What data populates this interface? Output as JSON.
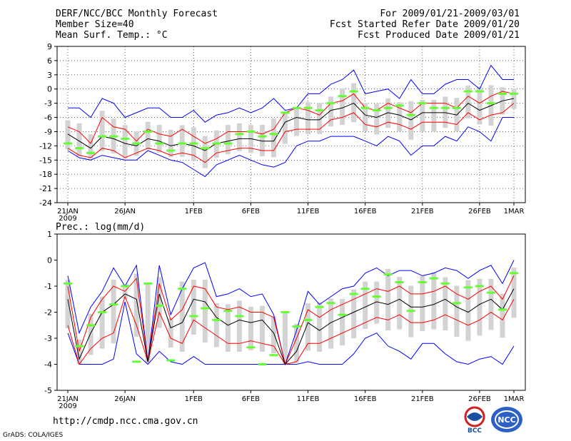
{
  "header": {
    "left": [
      "DERF/NCC/BCC Monthly Forecast",
      "Member Size=40",
      "Mean Surf. Temp.: °C"
    ],
    "right": [
      "For 2009/01/21-2009/03/01",
      "Fcst Started Refer Date 2009/01/20",
      "Fcst Produced Date 2009/01/21"
    ]
  },
  "footer": {
    "url": "http://cmdp.ncc.cma.gov.cn",
    "grads": "GrADS: COLA/IGES"
  },
  "logos": {
    "left": "BCC",
    "right": "NCC"
  },
  "colors": {
    "max_min": "#0000ff",
    "inner_band": "#ff0000",
    "mean": "#000000",
    "observed": "#66ff33",
    "spread_bar": "#d3d3d3"
  },
  "chart_data": [
    {
      "type": "line",
      "title": "Mean Surf. Temp.: °C",
      "x_tick_labels": [
        "21JAN\n2009",
        "26JAN",
        "1FEB",
        "6FEB",
        "11FEB",
        "16FEB",
        "21FEB",
        "26FEB",
        "1MAR"
      ],
      "x_tick_days": [
        0,
        5,
        11,
        16,
        21,
        26,
        31,
        36,
        39
      ],
      "ylim": [
        -24,
        9
      ],
      "yticks": [
        -24,
        -21,
        -18,
        -15,
        -12,
        -9,
        -6,
        -3,
        0,
        3,
        6,
        9
      ],
      "series": [
        {
          "name": "max",
          "values": [
            -4,
            -4,
            -6,
            -2,
            -3,
            -6,
            -5,
            -4,
            -4,
            -6,
            -6,
            -4.5,
            -7,
            -5.5,
            -5,
            -4,
            -5,
            -4,
            -2,
            -4.5,
            -4,
            -1,
            -1,
            1,
            2,
            4,
            -1,
            -0.5,
            0,
            -2,
            2,
            -1,
            -1,
            1,
            2,
            2,
            0,
            5,
            2,
            2
          ]
        },
        {
          "name": "upper",
          "values": [
            -8,
            -9,
            -11.5,
            -6,
            -8,
            -8.5,
            -11,
            -8.5,
            -9.5,
            -10,
            -8.5,
            -10,
            -11.5,
            -10.5,
            -9,
            -9,
            -9,
            -9.5,
            -8.5,
            -5,
            -4,
            -4.5,
            -5.5,
            -3,
            -2.5,
            -1,
            -4,
            -4.5,
            -3,
            -4,
            -5,
            -3,
            -3,
            -3,
            -4,
            -1.5,
            -3,
            -1.5,
            -0.5,
            -1
          ]
        },
        {
          "name": "mean",
          "values": [
            -9.5,
            -11,
            -12.5,
            -10,
            -10.5,
            -11.5,
            -12,
            -10.5,
            -11,
            -12,
            -11.5,
            -12,
            -13,
            -11.5,
            -11,
            -10.5,
            -10.5,
            -11,
            -11,
            -7,
            -6,
            -6.5,
            -6.5,
            -4.5,
            -4,
            -3,
            -5.5,
            -6,
            -5,
            -5.5,
            -6.5,
            -5,
            -5,
            -5,
            -5.5,
            -3,
            -4.5,
            -3.5,
            -2.5,
            -2
          ]
        },
        {
          "name": "lower",
          "values": [
            -12.5,
            -14,
            -14.5,
            -12.5,
            -13,
            -14.5,
            -13.5,
            -12.5,
            -13,
            -14,
            -13.5,
            -14,
            -15.5,
            -13.5,
            -13,
            -12.5,
            -12.5,
            -13,
            -13,
            -9,
            -8.5,
            -8.5,
            -8.5,
            -6.5,
            -6,
            -5,
            -7.5,
            -8,
            -7,
            -7.5,
            -8.5,
            -7,
            -7,
            -7,
            -7.5,
            -5,
            -6.5,
            -5.5,
            -5,
            -3
          ]
        },
        {
          "name": "min",
          "values": [
            -13,
            -14.5,
            -15,
            -14,
            -14.5,
            -15,
            -15,
            -13,
            -14,
            -15,
            -15.5,
            -17,
            -18.5,
            -16,
            -15,
            -14,
            -15,
            -16,
            -16.5,
            -15.5,
            -12,
            -11,
            -11,
            -10,
            -10,
            -10,
            -11,
            -12,
            -10,
            -11,
            -14,
            -12,
            -12,
            -10,
            -11,
            -8,
            -9,
            -11,
            -6,
            -6
          ]
        },
        {
          "name": "observed",
          "values": [
            -11.5,
            -12.5,
            -13.5,
            -10,
            -10,
            -10.5,
            -11.5,
            -9,
            -11.5,
            -13,
            -11.5,
            -11.5,
            -12.5,
            -11.5,
            -11.5,
            -9.5,
            -9,
            -10,
            -9.5,
            -5,
            -4,
            -4,
            -4.5,
            -3,
            -1.5,
            -0.5,
            -4,
            -4.5,
            -4,
            -3.5,
            -5.5,
            -3,
            -4,
            -4,
            -4,
            -0.5,
            -0.5,
            -3,
            -1,
            -1
          ]
        }
      ]
    },
    {
      "type": "line",
      "title": "Prec.: log(mm/d)",
      "x_tick_labels": [
        "21JAN\n2009",
        "26JAN",
        "1FEB",
        "6FEB",
        "11FEB",
        "16FEB",
        "21FEB",
        "26FEB",
        "1MAR"
      ],
      "x_tick_days": [
        0,
        5,
        11,
        16,
        21,
        26,
        31,
        36,
        39
      ],
      "ylim": [
        -5,
        1
      ],
      "yticks": [
        -5,
        -4,
        -3,
        -2,
        -1,
        0,
        1
      ],
      "series": [
        {
          "name": "max",
          "values": [
            -0.6,
            -2.8,
            -1.8,
            -1.2,
            -0.3,
            -1,
            -0.2,
            -3.9,
            -0.2,
            -2.1,
            -1.1,
            -0.3,
            -0.1,
            -1.4,
            -1.3,
            -1.1,
            -1.4,
            -1.3,
            -2.1,
            -4,
            -2.7,
            -1.2,
            -1.7,
            -1.4,
            -1.1,
            -1,
            -0.5,
            -0.3,
            -0.6,
            -0.4,
            -0.4,
            -0.6,
            -0.5,
            -0.3,
            -0.4,
            -0.7,
            -0.4,
            -0.2,
            -0.9,
            0
          ]
        },
        {
          "name": "upper",
          "values": [
            -1,
            -3.5,
            -2.2,
            -1.5,
            -1,
            -1.2,
            -0.7,
            -3.9,
            -0.9,
            -2.3,
            -1.9,
            -1,
            -1.1,
            -1.8,
            -1.9,
            -1.8,
            -2,
            -2,
            -2.2,
            -4,
            -3,
            -1.9,
            -2.2,
            -1.9,
            -1.7,
            -1.5,
            -1.3,
            -1.1,
            -1.2,
            -1,
            -1.3,
            -1.3,
            -1.2,
            -1,
            -1.3,
            -1.5,
            -1.2,
            -1,
            -1.5,
            -0.6
          ]
        },
        {
          "name": "mean",
          "values": [
            -1.5,
            -3.8,
            -2.8,
            -2,
            -1.7,
            -1.3,
            -1.5,
            -3.9,
            -1.3,
            -2.6,
            -2.4,
            -1.5,
            -1.6,
            -2.2,
            -2.5,
            -2.3,
            -2.4,
            -2.3,
            -2.8,
            -4,
            -3.5,
            -2.4,
            -2.7,
            -2.4,
            -2.2,
            -2,
            -1.8,
            -1.6,
            -1.7,
            -1.5,
            -1.8,
            -1.8,
            -1.7,
            -1.5,
            -1.8,
            -2,
            -1.7,
            -1.5,
            -1.9,
            -1.1
          ]
        },
        {
          "name": "lower",
          "values": [
            -2.5,
            -4,
            -3.4,
            -3,
            -2.8,
            -1.4,
            -2.5,
            -3.9,
            -2,
            -3,
            -3.2,
            -2.3,
            -2.6,
            -2.9,
            -3.2,
            -3.2,
            -3.1,
            -3.2,
            -3.3,
            -4,
            -3.9,
            -3.2,
            -3.2,
            -3,
            -2.8,
            -2.6,
            -2.4,
            -2.2,
            -2.3,
            -2.1,
            -2.4,
            -2.4,
            -2.3,
            -2.1,
            -2.3,
            -2.5,
            -2.3,
            -2,
            -2.3,
            -1.5
          ]
        },
        {
          "name": "min",
          "values": [
            -2.8,
            -4,
            -4,
            -4,
            -3.8,
            -1.6,
            -3.6,
            -4,
            -3.5,
            -3.9,
            -4,
            -3.7,
            -4,
            -4,
            -4,
            -4,
            -4,
            -4,
            -4,
            -4,
            -4,
            -3.9,
            -4,
            -4,
            -4,
            -3.6,
            -3,
            -2.8,
            -3.3,
            -3.5,
            -3.8,
            -3.2,
            -3.2,
            -3.6,
            -3.9,
            -4,
            -3.8,
            -3.7,
            -4,
            -3.3
          ]
        },
        {
          "name": "observed",
          "values": [
            -0.9,
            -3.3,
            -2.5,
            -2,
            -1.7,
            -1,
            -3.9,
            -0.9,
            -1.75,
            -3.85,
            -1.1,
            -2.15,
            -1.85,
            -2.3,
            -1.95,
            -2.15,
            -3.35,
            -4,
            -3.65,
            -2,
            -2.55,
            -2.3,
            -1.8,
            -1.65,
            -2.1,
            -1.3,
            -1.1,
            -1.4,
            -0.55,
            -0.85,
            -1.95,
            -0.85,
            -0.7,
            -0.9,
            -1.65,
            -1.05,
            -1.0,
            -1.25,
            -1.9,
            -0.5
          ]
        }
      ]
    }
  ]
}
